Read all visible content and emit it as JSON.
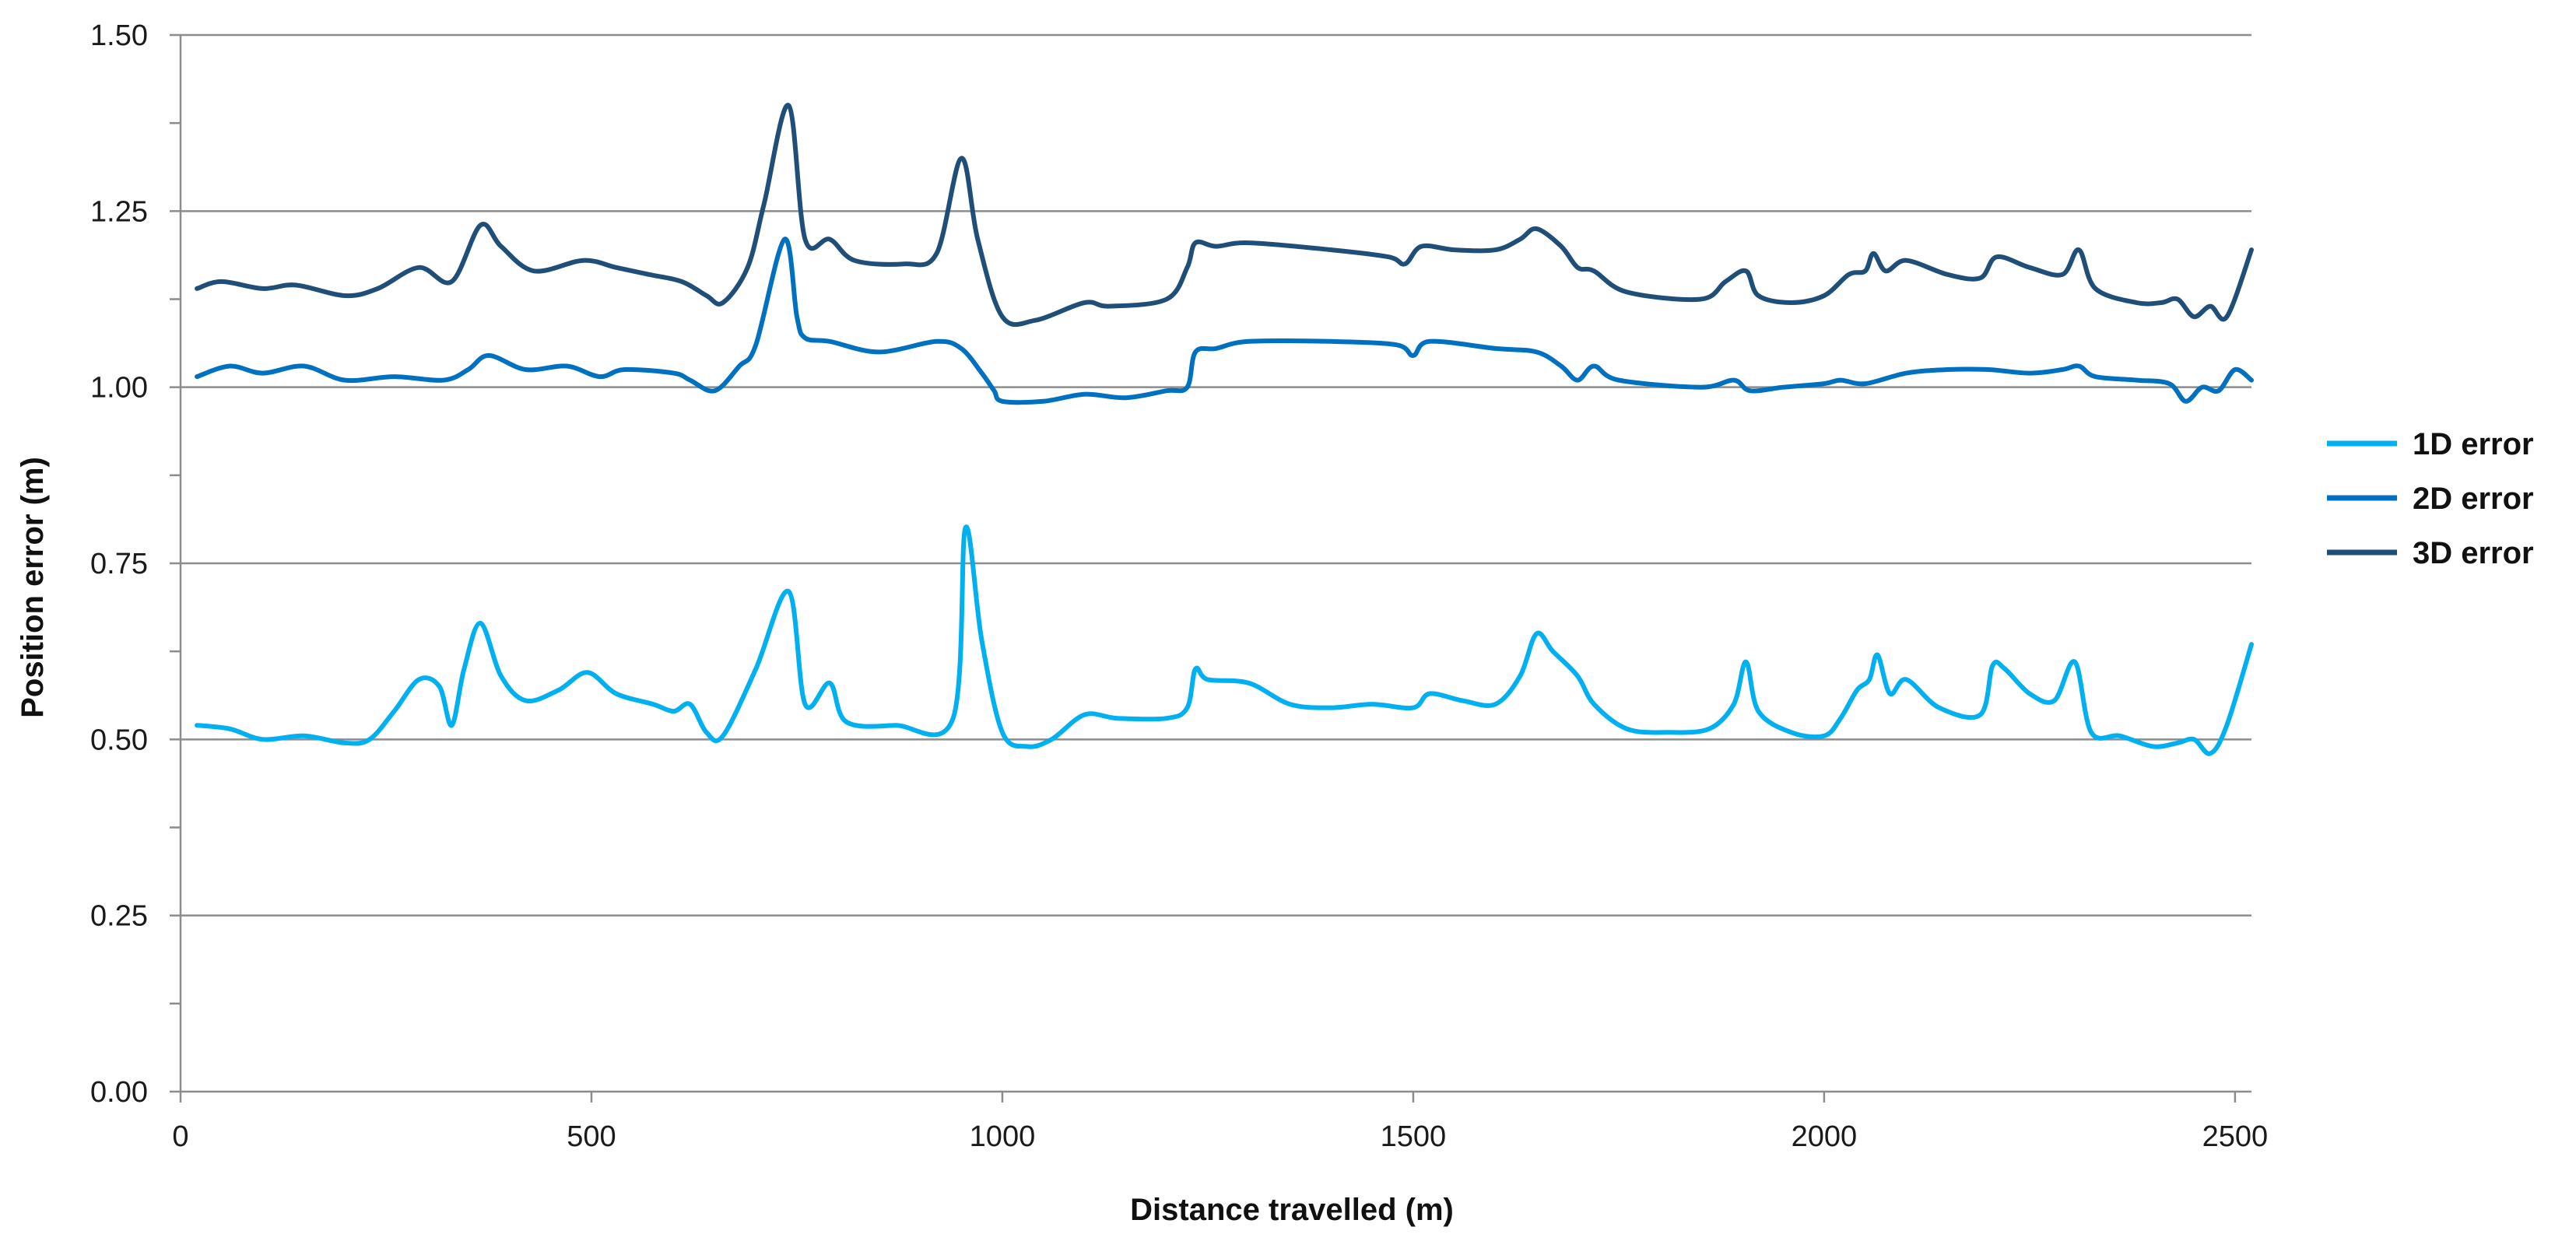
{
  "chart_data": {
    "type": "line",
    "title": "",
    "xlabel": "Distance travelled (m)",
    "ylabel": "Position error (m)",
    "xlim": [
      0,
      2520
    ],
    "ylim": [
      0,
      1.5
    ],
    "x_ticks": [
      0,
      500,
      1000,
      1500,
      2000,
      2500
    ],
    "x_tick_labels": [
      "0",
      "500",
      "1000",
      "1500",
      "2000",
      "2500"
    ],
    "y_ticks": [
      0,
      0.25,
      0.5,
      0.75,
      1.0,
      1.25,
      1.5
    ],
    "y_tick_labels": [
      "0.00",
      "0.25",
      "0.50",
      "0.75",
      "1.00",
      "1.25",
      "1.50"
    ],
    "grid": "horizontal",
    "legend_position": "right",
    "series": [
      {
        "name": "1D error",
        "color": "#00b0f0",
        "x": [
          20,
          60,
          100,
          150,
          200,
          230,
          260,
          290,
          315,
          330,
          345,
          365,
          390,
          420,
          460,
          495,
          530,
          575,
          600,
          620,
          640,
          660,
          700,
          740,
          760,
          790,
          810,
          870,
          940,
          955,
          975,
          1000,
          1030,
          1060,
          1100,
          1140,
          1200,
          1225,
          1235,
          1250,
          1300,
          1350,
          1400,
          1450,
          1500,
          1520,
          1560,
          1600,
          1630,
          1650,
          1670,
          1700,
          1720,
          1760,
          1810,
          1860,
          1890,
          1905,
          1920,
          1960,
          2000,
          2020,
          2040,
          2055,
          2065,
          2080,
          2100,
          2140,
          2190,
          2205,
          2220,
          2250,
          2280,
          2305,
          2325,
          2360,
          2400,
          2430,
          2450,
          2470,
          2490,
          2520
        ],
        "values": [
          0.52,
          0.515,
          0.5,
          0.505,
          0.495,
          0.5,
          0.54,
          0.585,
          0.575,
          0.52,
          0.6,
          0.665,
          0.59,
          0.555,
          0.57,
          0.595,
          0.565,
          0.55,
          0.54,
          0.55,
          0.51,
          0.505,
          0.6,
          0.71,
          0.55,
          0.58,
          0.525,
          0.52,
          0.53,
          0.8,
          0.64,
          0.51,
          0.49,
          0.5,
          0.535,
          0.53,
          0.53,
          0.545,
          0.6,
          0.585,
          0.58,
          0.55,
          0.545,
          0.55,
          0.545,
          0.565,
          0.555,
          0.55,
          0.59,
          0.65,
          0.625,
          0.59,
          0.55,
          0.515,
          0.51,
          0.515,
          0.55,
          0.61,
          0.54,
          0.51,
          0.505,
          0.53,
          0.57,
          0.585,
          0.62,
          0.565,
          0.585,
          0.545,
          0.535,
          0.605,
          0.6,
          0.565,
          0.555,
          0.61,
          0.51,
          0.505,
          0.49,
          0.495,
          0.5,
          0.48,
          0.52,
          0.635
        ]
      },
      {
        "name": "2D error",
        "color": "#0070c0",
        "x": [
          20,
          60,
          100,
          150,
          200,
          260,
          320,
          350,
          375,
          420,
          470,
          510,
          540,
          600,
          620,
          650,
          680,
          700,
          735,
          750,
          760,
          790,
          850,
          920,
          950,
          975,
          990,
          1000,
          1050,
          1100,
          1150,
          1200,
          1225,
          1235,
          1260,
          1300,
          1400,
          1480,
          1500,
          1520,
          1600,
          1650,
          1680,
          1700,
          1720,
          1750,
          1850,
          1890,
          1910,
          1950,
          2000,
          2020,
          2050,
          2100,
          2150,
          2200,
          2250,
          2290,
          2310,
          2330,
          2380,
          2420,
          2440,
          2460,
          2480,
          2500,
          2520
        ],
        "values": [
          1.015,
          1.03,
          1.02,
          1.03,
          1.01,
          1.015,
          1.01,
          1.025,
          1.045,
          1.025,
          1.03,
          1.015,
          1.025,
          1.02,
          1.01,
          0.995,
          1.03,
          1.06,
          1.21,
          1.1,
          1.07,
          1.065,
          1.05,
          1.065,
          1.055,
          1.02,
          0.995,
          0.98,
          0.98,
          0.99,
          0.985,
          0.995,
          1.0,
          1.05,
          1.055,
          1.065,
          1.065,
          1.06,
          1.045,
          1.065,
          1.055,
          1.05,
          1.03,
          1.01,
          1.03,
          1.01,
          1.0,
          1.01,
          0.995,
          1.0,
          1.005,
          1.01,
          1.005,
          1.02,
          1.025,
          1.025,
          1.02,
          1.025,
          1.03,
          1.015,
          1.01,
          1.005,
          0.98,
          1.0,
          0.995,
          1.025,
          1.01
        ]
      },
      {
        "name": "3D error",
        "color": "#1f4e79",
        "x": [
          20,
          50,
          100,
          140,
          200,
          240,
          290,
          330,
          365,
          390,
          430,
          490,
          530,
          570,
          610,
          640,
          660,
          690,
          710,
          740,
          760,
          790,
          820,
          880,
          920,
          950,
          970,
          1000,
          1040,
          1100,
          1130,
          1200,
          1225,
          1235,
          1260,
          1300,
          1400,
          1470,
          1490,
          1510,
          1550,
          1600,
          1630,
          1650,
          1680,
          1700,
          1720,
          1760,
          1850,
          1880,
          1905,
          1920,
          1960,
          2000,
          2030,
          2050,
          2060,
          2075,
          2100,
          2150,
          2190,
          2210,
          2250,
          2290,
          2310,
          2330,
          2380,
          2410,
          2430,
          2450,
          2470,
          2490,
          2520
        ],
        "values": [
          1.14,
          1.15,
          1.14,
          1.145,
          1.13,
          1.14,
          1.17,
          1.15,
          1.23,
          1.2,
          1.165,
          1.18,
          1.17,
          1.16,
          1.15,
          1.13,
          1.12,
          1.17,
          1.26,
          1.4,
          1.21,
          1.21,
          1.18,
          1.175,
          1.19,
          1.325,
          1.21,
          1.1,
          1.095,
          1.12,
          1.115,
          1.125,
          1.17,
          1.205,
          1.2,
          1.205,
          1.195,
          1.185,
          1.175,
          1.2,
          1.195,
          1.195,
          1.21,
          1.225,
          1.2,
          1.17,
          1.165,
          1.135,
          1.125,
          1.15,
          1.165,
          1.13,
          1.12,
          1.13,
          1.16,
          1.165,
          1.19,
          1.165,
          1.18,
          1.16,
          1.155,
          1.185,
          1.17,
          1.16,
          1.195,
          1.14,
          1.12,
          1.12,
          1.125,
          1.1,
          1.115,
          1.1,
          1.195
        ]
      }
    ]
  }
}
